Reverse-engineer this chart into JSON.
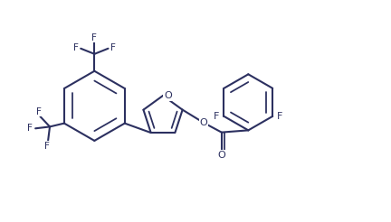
{
  "bg_color": "#ffffff",
  "line_color": "#2c3060",
  "line_width": 1.5,
  "font_size": 7.5,
  "fig_width": 4.32,
  "fig_height": 2.46,
  "dpi": 100,
  "xlim": [
    0,
    11
  ],
  "ylim": [
    0,
    6.5
  ]
}
